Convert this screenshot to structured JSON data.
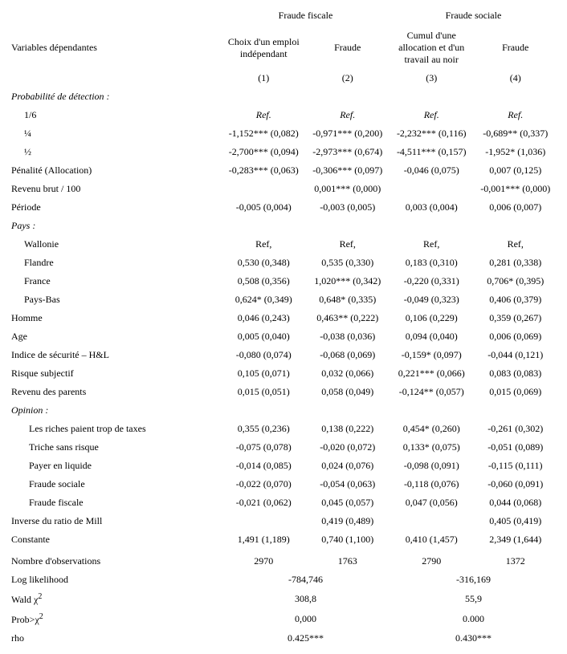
{
  "headers": {
    "group1": "Fraude fiscale",
    "group2": "Fraude sociale",
    "dep_label": "Variables dépendantes",
    "col1": "Choix d'un emploi indépendant",
    "col2": "Fraude",
    "col3": "Cumul d'une allocation et d'un travail au noir",
    "col4": "Fraude",
    "num1": "(1)",
    "num2": "(2)",
    "num3": "(3)",
    "num4": "(4)"
  },
  "sections": {
    "prob_detect": "Probabilité de détection :",
    "pays": "Pays :",
    "opinion": "Opinion :"
  },
  "rows": {
    "r1_6": {
      "label": "1/6",
      "c1": "Ref.",
      "c2": "Ref.",
      "c3": "Ref.",
      "c4": "Ref.",
      "italic": true
    },
    "r1_4": {
      "label": "¼",
      "c1": "-1,152*** (0,082)",
      "c2": "-0,971*** (0,200)",
      "c3": "-2,232*** (0,116)",
      "c4": "-0,689** (0,337)"
    },
    "r1_2": {
      "label": "½",
      "c1": "-2,700*** (0,094)",
      "c2": "-2,973*** (0,674)",
      "c3": "-4,511*** (0,157)",
      "c4": "-1,952* (1,036)"
    },
    "penalite": {
      "label": "Pénalité (Allocation)",
      "c1": "-0,283*** (0,063)",
      "c2": "-0,306*** (0,097)",
      "c3": "-0,046 (0,075)",
      "c4": "0,007 (0,125)"
    },
    "revenu": {
      "label": "Revenu brut / 100",
      "c1": "",
      "c2": "0,001*** (0,000)",
      "c3": "",
      "c4": "-0,001*** (0,000)"
    },
    "periode": {
      "label": "Période",
      "c1": "-0,005 (0,004)",
      "c2": "-0,003 (0,005)",
      "c3": "0,003 (0,004)",
      "c4": "0,006 (0,007)"
    },
    "wallonie": {
      "label": "Wallonie",
      "c1": "Ref,",
      "c2": "Ref,",
      "c3": "Ref,",
      "c4": "Ref,"
    },
    "flandre": {
      "label": "Flandre",
      "c1": "0,530 (0,348)",
      "c2": "0,535 (0,330)",
      "c3": "0,183 (0,310)",
      "c4": "0,281 (0,338)"
    },
    "france": {
      "label": "France",
      "c1": "0,508 (0,356)",
      "c2": "1,020*** (0,342)",
      "c3": "-0,220 (0,331)",
      "c4": "0,706* (0,395)"
    },
    "paysbas": {
      "label": "Pays-Bas",
      "c1": "0,624* (0,349)",
      "c2": "0,648* (0,335)",
      "c3": "-0,049 (0,323)",
      "c4": "0,406 (0,379)"
    },
    "homme": {
      "label": "Homme",
      "c1": "0,046 (0,243)",
      "c2": "0,463** (0,222)",
      "c3": "0,106 (0,229)",
      "c4": "0,359 (0,267)"
    },
    "age": {
      "label": "Age",
      "c1": "0,005 (0,040)",
      "c2": "-0,038 (0,036)",
      "c3": "0,094 (0,040)",
      "c4": "0,006 (0,069)"
    },
    "indice": {
      "label": "Indice de sécurité – H&L",
      "c1": "-0,080 (0,074)",
      "c2": "-0,068 (0,069)",
      "c3": "-0,159* (0,097)",
      "c4": "-0,044 (0,121)"
    },
    "risque": {
      "label": "Risque subjectif",
      "c1": "0,105 (0,071)",
      "c2": "0,032 (0,066)",
      "c3": "0,221*** (0,066)",
      "c4": "0,083 (0,083)"
    },
    "revpar": {
      "label": "Revenu des parents",
      "c1": "0,015 (0,051)",
      "c2": "0,058 (0,049)",
      "c3": "-0,124** (0,057)",
      "c4": "0,015 (0,069)"
    },
    "riches": {
      "label": "Les riches paient trop de taxes",
      "c1": "0,355 (0,236)",
      "c2": "0,138 (0,222)",
      "c3": "0,454* (0,260)",
      "c4": "-0,261 (0,302)"
    },
    "triche": {
      "label": "Triche sans risque",
      "c1": "-0,075 (0,078)",
      "c2": "-0,020 (0,072)",
      "c3": "0,133* (0,075)",
      "c4": "-0,051 (0,089)"
    },
    "payer": {
      "label": "Payer en liquide",
      "c1": "-0,014 (0,085)",
      "c2": "0,024 (0,076)",
      "c3": "-0,098 (0,091)",
      "c4": "-0,115 (0,111)"
    },
    "fsoc": {
      "label": "Fraude sociale",
      "c1": "-0,022 (0,070)",
      "c2": "-0,054 (0,063)",
      "c3": "-0,118 (0,076)",
      "c4": "-0,060 (0,091)"
    },
    "ffisc": {
      "label": "Fraude fiscale",
      "c1": "-0,021 (0,062)",
      "c2": "0,045 (0,057)",
      "c3": "0,047 (0,056)",
      "c4": "0,044 (0,068)"
    },
    "mill": {
      "label": "Inverse du ratio de Mill",
      "c1": "",
      "c2": "0,419 (0,489)",
      "c3": "",
      "c4": "0,405 (0,419)"
    },
    "constante": {
      "label": "Constante",
      "c1": "1,491 (1,189)",
      "c2": "0,740 (1,100)",
      "c3": "0,410 (1,457)",
      "c4": "2,349 (1,644)"
    },
    "nobs": {
      "label": "Nombre d'observations",
      "c1": "2970",
      "c2": "1763",
      "c3": "2790",
      "c4": "1372"
    },
    "loglik": {
      "label": "Log likelihood",
      "w1": "-784,746",
      "w2": "-316,169"
    },
    "wald": {
      "label": "Wald χ",
      "sup": "2",
      "w1": "308,8",
      "w2": "55,9"
    },
    "prob": {
      "label": "Prob>χ",
      "sup": "2",
      "w1": "0,000",
      "w2": "0.000"
    },
    "rho": {
      "label": "rho",
      "w1": "0.425***",
      "w2": "0.430***"
    }
  }
}
